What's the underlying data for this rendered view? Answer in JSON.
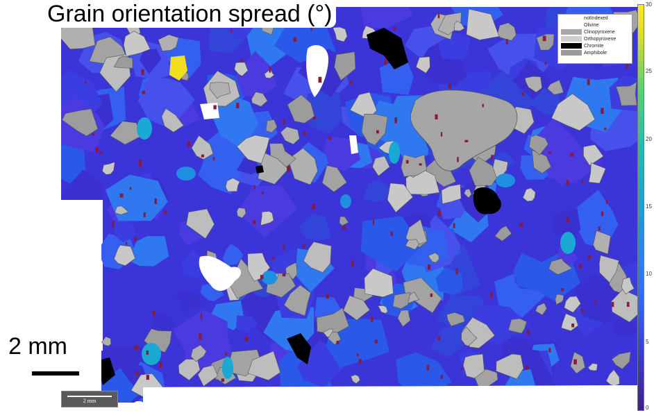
{
  "figure": {
    "title": "Grain orientation spread (°)",
    "scale_bar_label": "2 mm",
    "inner_scale_label": "2 mm"
  },
  "legend": {
    "items": [
      {
        "label": "notIndexed",
        "color": "#ffffff"
      },
      {
        "label": "Olivine",
        "color": "#ffffff"
      },
      {
        "label": "Clinopyroxene",
        "color": "#a8a8a8"
      },
      {
        "label": "Orthopyroxene",
        "color": "#cfcfcf"
      },
      {
        "label": "Chromite",
        "color": "#000000"
      },
      {
        "label": "Amphibole",
        "color": "#9a9a9a"
      }
    ]
  },
  "colorbar": {
    "ticks": [
      "30",
      "25",
      "20",
      "15",
      "10",
      "5",
      "0"
    ],
    "min": 0,
    "max": 30
  },
  "colors": {
    "olivine_low": "#3b34d8",
    "olivine_mid": "#2f6cf0",
    "olivine_high": "#19a9d2",
    "olivine_max": "#f2e01b",
    "grain_boundary": "#8a1a3a",
    "pyroxene": "#a3a3a3",
    "chromite": "#000000",
    "notindexed": "#ffffff"
  }
}
